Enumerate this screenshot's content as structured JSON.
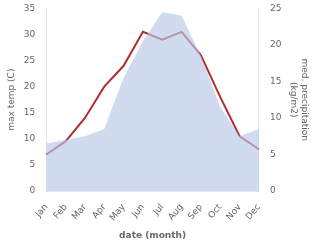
{
  "chart_data": {
    "type": "line",
    "categories": [
      "Jan",
      "Feb",
      "Mar",
      "Apr",
      "May",
      "Jun",
      "Jul",
      "Aug",
      "Sep",
      "Oct",
      "Nov",
      "Dec"
    ],
    "series": [
      {
        "type": "area",
        "color": "#b8c8e8",
        "axis": "y2",
        "values": [
          6.5,
          7,
          7.5,
          8.5,
          15.5,
          20.5,
          24.5,
          24,
          18.5,
          11.5,
          7.5,
          8.5
        ]
      },
      {
        "type": "line",
        "color": "#b03030",
        "values": [
          7,
          9.5,
          14,
          20,
          24,
          30.5,
          29,
          30.5,
          26,
          18,
          10.5,
          8
        ]
      }
    ],
    "xlabel": "date (month)",
    "ylabel": "max temp (C)",
    "y2label": "med. precipitation\n(kg/m2)",
    "ylim": [
      0,
      35
    ],
    "yticks": [
      0,
      5,
      10,
      15,
      20,
      25,
      30,
      35
    ],
    "y2lim": [
      0,
      25
    ],
    "y2ticks": [
      0,
      5,
      10,
      15,
      20,
      25
    ],
    "grid": false
  }
}
